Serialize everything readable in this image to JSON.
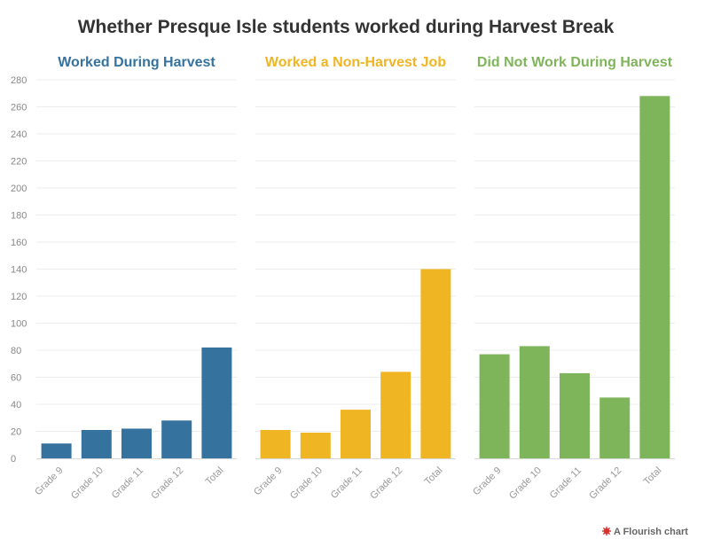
{
  "chart_data": {
    "type": "bar",
    "title": "Whether Presque Isle students worked during Harvest Break",
    "ylim": [
      0,
      280
    ],
    "ytick_step": 20,
    "grid": true,
    "categories": [
      "Grade 9",
      "Grade 10",
      "Grade 11",
      "Grade 12",
      "Total"
    ],
    "series": [
      {
        "name": "Worked During Harvest",
        "color": "#35739e",
        "values": [
          11,
          21,
          22,
          28,
          82
        ]
      },
      {
        "name": "Worked a Non-Harvest Job",
        "color": "#efb522",
        "values": [
          21,
          19,
          36,
          64,
          140
        ]
      },
      {
        "name": "Did Not Work During Harvest",
        "color": "#7fb55a",
        "values": [
          77,
          83,
          63,
          45,
          268
        ]
      }
    ]
  },
  "credit": {
    "text": "A Flourish chart",
    "icon": "flourish-logo-icon",
    "icon_color": "#d9302c"
  }
}
